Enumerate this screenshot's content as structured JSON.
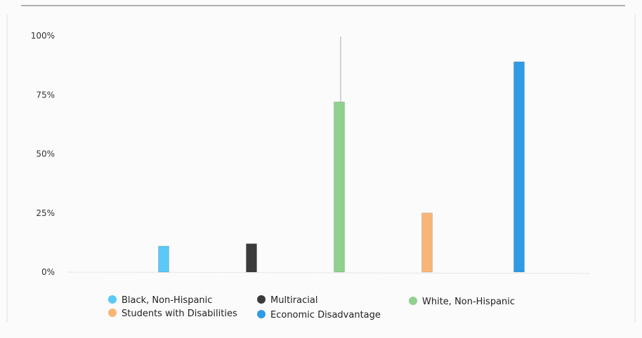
{
  "chart_data": {
    "type": "bar",
    "categories": [
      "Black, Non-Hispanic",
      "Multiracial",
      "White, Non-Hispanic",
      "Students with Disabilities",
      "Economic Disadvantage"
    ],
    "series": [
      {
        "values": [
          11,
          12,
          72,
          25,
          89
        ],
        "colors": [
          "#5bc8f5",
          "#3b3b3b",
          "#8fd18f",
          "#f7b676",
          "#2f9be6"
        ]
      }
    ],
    "ylim": [
      0,
      100
    ],
    "yticks": [
      0,
      25,
      50,
      75,
      100
    ],
    "ytick_labels": [
      "0%",
      "25%",
      "50%",
      "75%",
      "100%"
    ],
    "grid": false,
    "legend": {
      "placement": "bottom",
      "entries": [
        {
          "label": "Black, Non-Hispanic",
          "color": "#5bc8f5"
        },
        {
          "label": "Multiracial",
          "color": "#3b3b3b"
        },
        {
          "label": "White, Non-Hispanic",
          "color": "#8fd18f"
        },
        {
          "label": "Students with Disabilities",
          "color": "#f7b676"
        },
        {
          "label": "Economic Disadvantage",
          "color": "#2f9be6"
        }
      ]
    }
  }
}
